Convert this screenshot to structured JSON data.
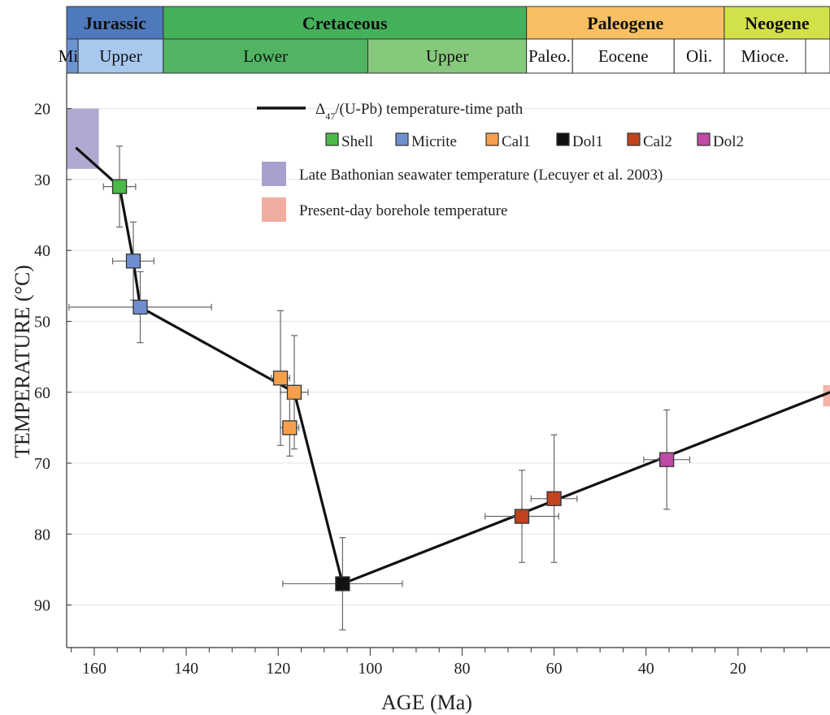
{
  "chart_data": {
    "type": "scatter",
    "xlabel": "AGE (Ma)",
    "ylabel": "TEMPERATURE (°C)",
    "xlim": [
      166,
      0
    ],
    "ylim": [
      96,
      15
    ],
    "x_ticks": [
      160,
      140,
      120,
      100,
      80,
      60,
      40,
      20
    ],
    "y_ticks": [
      20,
      30,
      40,
      50,
      60,
      70,
      80,
      90
    ],
    "grid": "horizontal",
    "timescale": {
      "periods": [
        {
          "label": "Jurassic",
          "from": 166,
          "to": 145,
          "color": "#4f79bd"
        },
        {
          "label": "Cretaceous",
          "from": 145,
          "to": 66,
          "color": "#45b05a"
        },
        {
          "label": "Paleogene",
          "from": 66,
          "to": 23,
          "color": "#f8c062"
        },
        {
          "label": "Neogene",
          "from": 23,
          "to": 0,
          "color": "#d2e04a"
        }
      ],
      "epochs": [
        {
          "label": "Mid",
          "from": 166,
          "to": 163.5,
          "color": "#6b93cf"
        },
        {
          "label": "Upper",
          "from": 163.5,
          "to": 145,
          "color": "#a8c8ee"
        },
        {
          "label": "Lower",
          "from": 145,
          "to": 100.5,
          "color": "#52b462"
        },
        {
          "label": "Upper",
          "from": 100.5,
          "to": 66,
          "color": "#86c97c"
        },
        {
          "label": "Paleo.",
          "from": 66,
          "to": 56,
          "color": "#ffffff"
        },
        {
          "label": "Eocene",
          "from": 56,
          "to": 33.9,
          "color": "#ffffff"
        },
        {
          "label": "Oli.",
          "from": 33.9,
          "to": 23,
          "color": "#ffffff"
        },
        {
          "label": "Mioce.",
          "from": 23,
          "to": 5.3,
          "color": "#ffffff"
        },
        {
          "label": "",
          "from": 5.3,
          "to": 0,
          "color": "#ffffff"
        }
      ]
    },
    "path": {
      "name": "Δ47/(U-Pb) temperature-time path",
      "points": [
        [
          164,
          25.5
        ],
        [
          154.5,
          31
        ],
        [
          151.5,
          41.5
        ],
        [
          150,
          48
        ],
        [
          116.5,
          60
        ],
        [
          106,
          87
        ],
        [
          0,
          60
        ]
      ]
    },
    "series": [
      {
        "name": "Shell",
        "color": "#4cb848",
        "points": [
          {
            "x": 154.5,
            "y": 31,
            "xerr": 3.5,
            "yerr": 5.7
          }
        ]
      },
      {
        "name": "Micrite",
        "color": "#6e8fcf",
        "points": [
          {
            "x": 151.5,
            "y": 41.5,
            "xerr": 4.5,
            "yerr": 5.5
          },
          {
            "x": 150,
            "y": 48,
            "xerr": 15.5,
            "yerr": 5
          }
        ]
      },
      {
        "name": "Cal1",
        "color": "#f6a04d",
        "points": [
          {
            "x": 119.5,
            "y": 58,
            "xerr": 2,
            "yerr": 9.5
          },
          {
            "x": 116.5,
            "y": 60,
            "xerr": 3,
            "yerr": 8
          },
          {
            "x": 117.5,
            "y": 65,
            "xerr": 2,
            "yerr": 4
          }
        ]
      },
      {
        "name": "Dol1",
        "color": "#111111",
        "points": [
          {
            "x": 106,
            "y": 87,
            "xerr": 13,
            "yerr": 6.5
          }
        ]
      },
      {
        "name": "Cal2",
        "color": "#c1431f",
        "points": [
          {
            "x": 67,
            "y": 77.5,
            "xerr": 8,
            "yerr": 6.5
          },
          {
            "x": 60,
            "y": 75,
            "xerr": 5,
            "yerr": 9
          }
        ]
      },
      {
        "name": "Dol2",
        "color": "#c04aa6",
        "points": [
          {
            "x": 35.5,
            "y": 69.5,
            "xerr": 5,
            "yerr": 7
          }
        ]
      }
    ],
    "ranges": [
      {
        "name": "Late Bathonian seawater temperature (Lecuyer et al. 2003)",
        "color": "#a7a1cd",
        "x": [
          166,
          159
        ],
        "y": [
          20,
          28.5
        ]
      },
      {
        "name": "Present-day borehole temperature",
        "color": "#f1ada0",
        "x": [
          1.5,
          0
        ],
        "y": [
          59,
          62
        ]
      }
    ],
    "legend_position": "top-center"
  }
}
